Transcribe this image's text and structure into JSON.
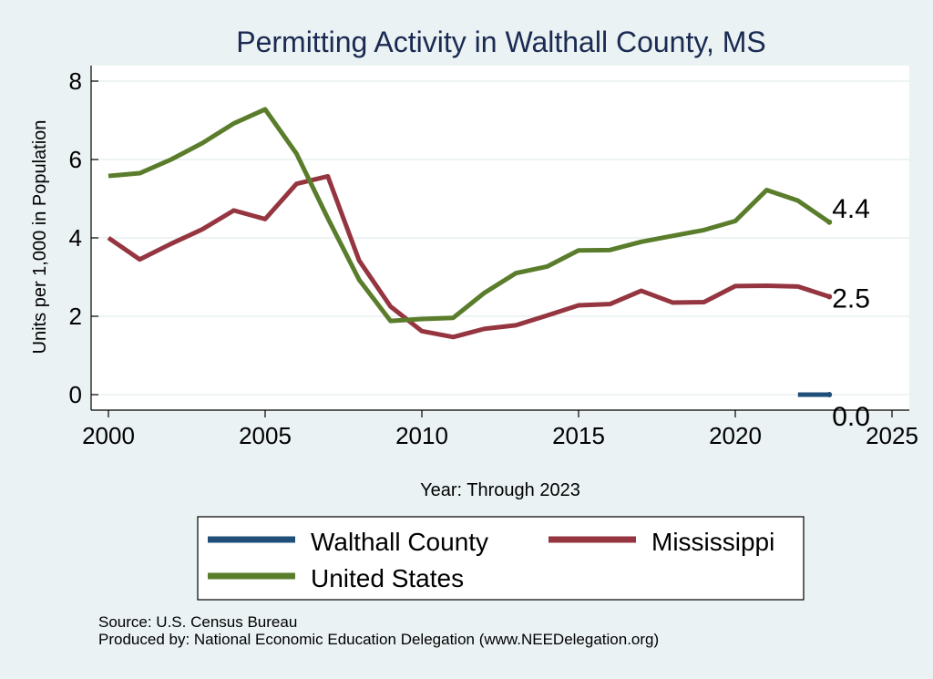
{
  "chart_data": {
    "type": "line",
    "title": "Permitting Activity in Walthall County, MS",
    "xlabel": "Year: Through 2023",
    "ylabel": "Units per 1,000 in Population",
    "xlim": [
      2000,
      2025
    ],
    "ylim": [
      0,
      8
    ],
    "x_ticks": [
      "2000",
      "2005",
      "2010",
      "2015",
      "2020",
      "2025"
    ],
    "y_ticks": [
      "0",
      "2",
      "4",
      "6",
      "8"
    ],
    "grid": true,
    "legend_position": "bottom",
    "series": [
      {
        "name": "Walthall County",
        "color": "#1f4e79",
        "x": [
          2022,
          2023
        ],
        "values": [
          0.0,
          0.0
        ],
        "end_label": "0.0"
      },
      {
        "name": "Mississippi",
        "color": "#953540",
        "x": [
          2000,
          2001,
          2002,
          2003,
          2004,
          2005,
          2006,
          2007,
          2008,
          2009,
          2010,
          2011,
          2012,
          2013,
          2014,
          2015,
          2016,
          2017,
          2018,
          2019,
          2020,
          2021,
          2022,
          2023
        ],
        "values": [
          4.0,
          3.45,
          3.85,
          4.22,
          4.7,
          4.48,
          5.38,
          5.57,
          3.42,
          2.25,
          1.62,
          1.47,
          1.68,
          1.77,
          2.02,
          2.28,
          2.31,
          2.65,
          2.35,
          2.36,
          2.77,
          2.78,
          2.76,
          2.5
        ],
        "end_label": "2.5"
      },
      {
        "name": "United States",
        "color": "#5a7d2c",
        "x": [
          2000,
          2001,
          2002,
          2003,
          2004,
          2005,
          2006,
          2007,
          2008,
          2009,
          2010,
          2011,
          2012,
          2013,
          2014,
          2015,
          2016,
          2017,
          2018,
          2019,
          2020,
          2021,
          2022,
          2023
        ],
        "values": [
          5.58,
          5.65,
          6.0,
          6.42,
          6.92,
          7.28,
          6.15,
          4.5,
          2.93,
          1.88,
          1.93,
          1.96,
          2.6,
          3.1,
          3.27,
          3.68,
          3.69,
          3.9,
          4.05,
          4.2,
          4.43,
          5.22,
          4.95,
          4.4
        ],
        "end_label": "4.4"
      }
    ]
  },
  "footer": {
    "source": "Source: U.S. Census Bureau",
    "produced_by": "Produced by: National Economic Education Delegation (www.NEEDelegation.org)"
  }
}
